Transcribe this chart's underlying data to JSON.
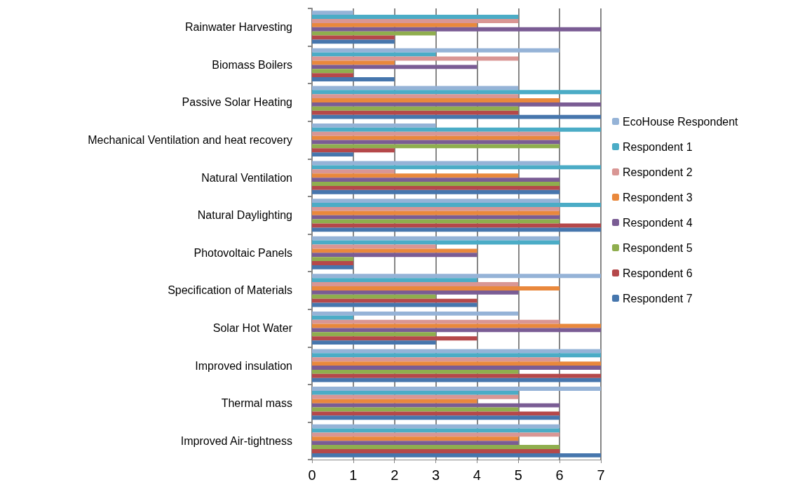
{
  "chart_data": {
    "type": "bar",
    "orientation": "horizontal",
    "categories": [
      "Rainwater Harvesting",
      "Biomass Boilers",
      "Passive Solar Heating",
      "Mechanical Ventilation and heat recovery",
      "Natural Ventilation",
      "Natural Daylighting",
      "Photovoltaic Panels",
      "Specification of Materials",
      "Solar Hot Water",
      "Improved insulation",
      "Thermal mass",
      "Improved Air-tightness"
    ],
    "series": [
      {
        "name": "EcoHouse Respondent",
        "color": "#95b3d7",
        "values": [
          1,
          6,
          5,
          3,
          6,
          6,
          6,
          7,
          5,
          7,
          7,
          6
        ]
      },
      {
        "name": "Respondent 1",
        "color": "#4bacc6",
        "values": [
          5,
          3,
          7,
          7,
          7,
          7,
          6,
          4,
          1,
          7,
          5,
          6
        ]
      },
      {
        "name": "Respondent 2",
        "color": "#d99694",
        "values": [
          5,
          5,
          5,
          6,
          2,
          6,
          3,
          5,
          6,
          6,
          5,
          6
        ]
      },
      {
        "name": "Respondent 3",
        "color": "#e9883c",
        "values": [
          4,
          2,
          6,
          6,
          5,
          6,
          4,
          6,
          7,
          7,
          4,
          5
        ]
      },
      {
        "name": "Respondent 4",
        "color": "#7a5c94",
        "values": [
          7,
          4,
          7,
          6,
          6,
          6,
          4,
          5,
          7,
          7,
          6,
          5
        ]
      },
      {
        "name": "Respondent 5",
        "color": "#8fae4e",
        "values": [
          3,
          1,
          5,
          6,
          6,
          6,
          1,
          3,
          3,
          5,
          5,
          6
        ]
      },
      {
        "name": "Respondent 6",
        "color": "#b5484a",
        "values": [
          2,
          1,
          5,
          2,
          6,
          7,
          1,
          4,
          4,
          7,
          6,
          6
        ]
      },
      {
        "name": "Respondent 7",
        "color": "#4676ad",
        "values": [
          2,
          2,
          7,
          1,
          6,
          7,
          1,
          4,
          3,
          7,
          6,
          7
        ]
      }
    ],
    "xlim": [
      0,
      7
    ],
    "xticks": [
      0,
      1,
      2,
      3,
      4,
      5,
      6,
      7
    ],
    "grid": "x",
    "legend": "right"
  }
}
